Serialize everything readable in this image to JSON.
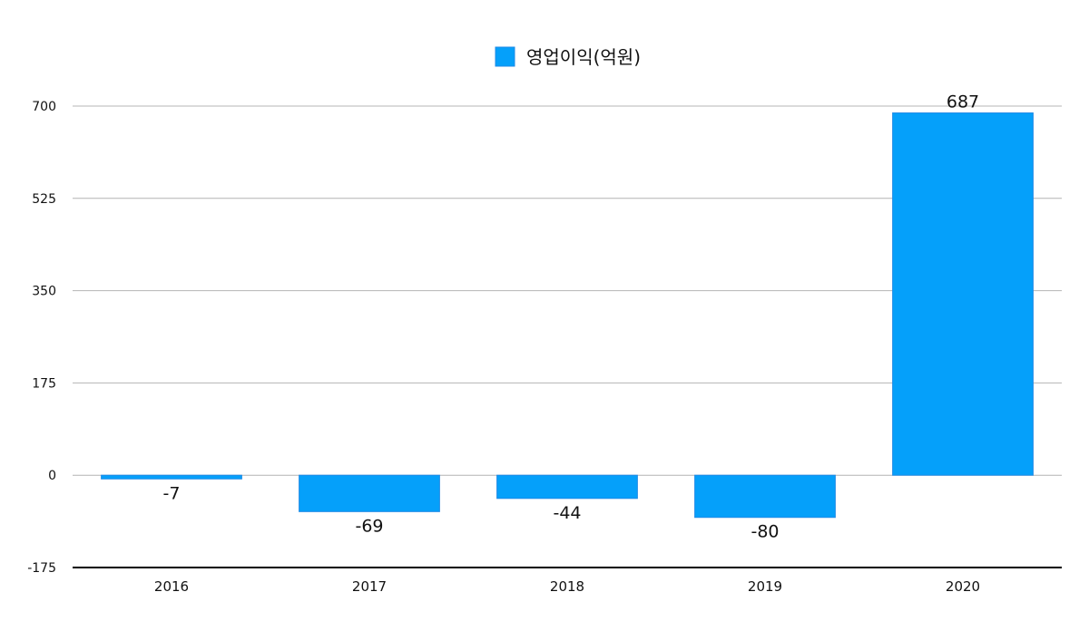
{
  "chart_data": {
    "type": "bar",
    "categories": [
      "2016",
      "2017",
      "2018",
      "2019",
      "2020"
    ],
    "series": [
      {
        "name": "영업이익(억원)",
        "values": [
          -7,
          -69,
          -44,
          -80,
          687
        ],
        "color": "#05A0FA",
        "border_color": "#1E8AE6"
      }
    ],
    "data_labels": [
      "-7",
      "-69",
      "-44",
      "-80",
      "687"
    ],
    "y_ticks": [
      700,
      525,
      350,
      175,
      0,
      -175
    ],
    "y_tick_labels": [
      "700",
      "525",
      "350",
      "175",
      "0",
      "-175"
    ],
    "ylim": [
      -175,
      700
    ],
    "grid": true,
    "legend": "top-center",
    "title": "",
    "xlabel": "",
    "ylabel": ""
  }
}
